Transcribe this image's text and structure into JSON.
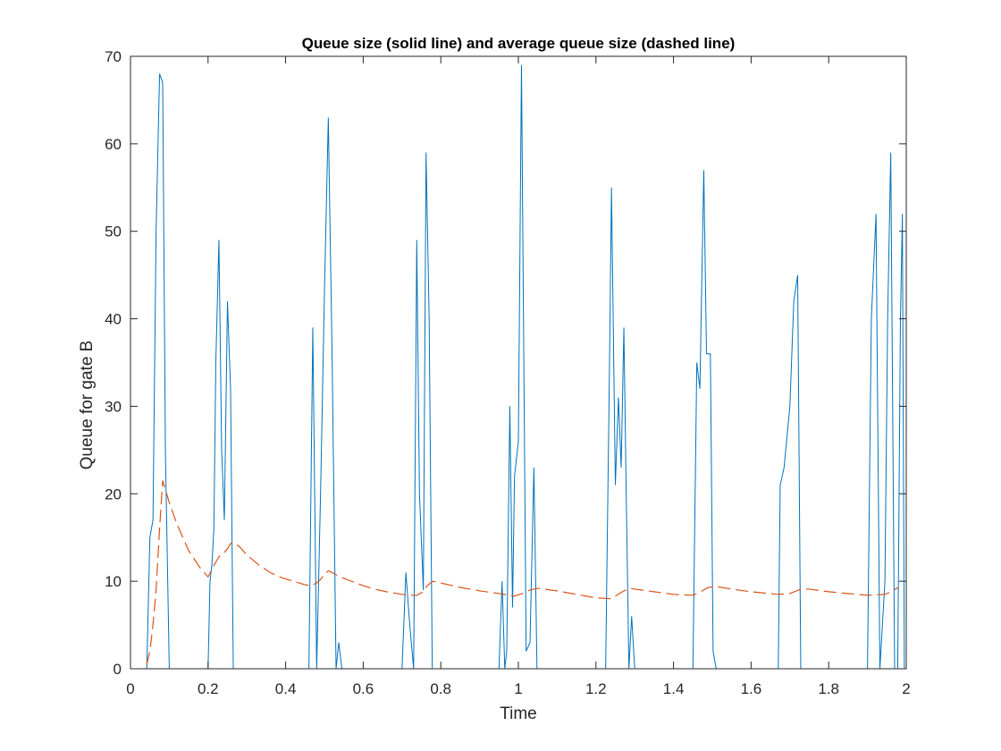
{
  "chart_data": {
    "type": "line",
    "title": "Queue size (solid line) and average queue size (dashed line)",
    "xlabel": "Time",
    "ylabel": "Queue for gate B",
    "xlim": [
      0,
      2
    ],
    "ylim": [
      0,
      70
    ],
    "xticks": [
      0,
      0.2,
      0.4,
      0.6,
      0.8,
      1,
      1.2,
      1.4,
      1.6,
      1.8,
      2
    ],
    "xtick_labels": [
      "0",
      "0.2",
      "0.4",
      "0.6",
      "0.8",
      "1",
      "1.2",
      "1.4",
      "1.6",
      "1.8",
      "2"
    ],
    "yticks": [
      0,
      10,
      20,
      30,
      40,
      50,
      60,
      70
    ],
    "ytick_labels": [
      "0",
      "10",
      "20",
      "30",
      "40",
      "50",
      "60",
      "70"
    ],
    "grid": false,
    "box": true,
    "series": [
      {
        "style": "solid",
        "color": "#0072BD",
        "x": [
          0,
          0.042,
          0.05,
          0.058,
          0.066,
          0.075,
          0.083,
          0.09,
          0.1,
          0.2,
          0.205,
          0.21,
          0.215,
          0.22,
          0.228,
          0.235,
          0.242,
          0.25,
          0.258,
          0.265,
          0.275,
          0.28,
          0.45,
          0.46,
          0.47,
          0.48,
          0.49,
          0.5,
          0.51,
          0.52,
          0.53,
          0.537,
          0.545,
          0.555,
          0.7,
          0.71,
          0.72,
          0.73,
          0.738,
          0.745,
          0.755,
          0.762,
          0.77,
          0.778,
          0.785,
          0.95,
          0.958,
          0.965,
          0.97,
          0.978,
          0.985,
          0.99,
          1.0,
          1.008,
          1.02,
          1.03,
          1.04,
          1.048,
          1.055,
          1.065,
          1.225,
          1.235,
          1.24,
          1.25,
          1.258,
          1.265,
          1.272,
          1.278,
          1.285,
          1.292,
          1.3,
          1.31,
          1.318,
          1.328,
          1.45,
          1.46,
          1.468,
          1.478,
          1.485,
          1.495,
          1.502,
          1.51,
          1.52,
          1.67,
          1.675,
          1.685,
          1.7,
          1.71,
          1.72,
          1.728,
          1.74,
          1.9,
          1.91,
          1.922,
          1.932,
          1.945,
          1.952,
          1.96,
          1.97,
          1.978,
          1.985,
          1.99,
          1.995
        ],
        "y": [
          0,
          0,
          15,
          17,
          50,
          68,
          67,
          25,
          0,
          0,
          10,
          12,
          16,
          35,
          49,
          25,
          17,
          42,
          32,
          0,
          0,
          0,
          0,
          0,
          39,
          0,
          20,
          43,
          63,
          35,
          0,
          3,
          0,
          0,
          0,
          11,
          5,
          0,
          49,
          20,
          9,
          59,
          40,
          0,
          0,
          0,
          10,
          0,
          2,
          30,
          7,
          22,
          26,
          69,
          2,
          3,
          23,
          0,
          0,
          0,
          0,
          35,
          55,
          21,
          31,
          23,
          39,
          20,
          0,
          6,
          0,
          0,
          0,
          0,
          0,
          35,
          32,
          57,
          36,
          36,
          2,
          0,
          0,
          0,
          21,
          23,
          30,
          42,
          45,
          0,
          0,
          0,
          40,
          52,
          0,
          10,
          40,
          59,
          0,
          0,
          40,
          52,
          0
        ]
      },
      {
        "style": "dashed",
        "color": "#D95319",
        "x": [
          0.042,
          0.05,
          0.058,
          0.066,
          0.075,
          0.083,
          0.09,
          0.1,
          0.12,
          0.15,
          0.18,
          0.2,
          0.215,
          0.228,
          0.24,
          0.25,
          0.258,
          0.265,
          0.28,
          0.3,
          0.33,
          0.36,
          0.39,
          0.42,
          0.45,
          0.465,
          0.48,
          0.49,
          0.5,
          0.51,
          0.52,
          0.54,
          0.57,
          0.6,
          0.63,
          0.66,
          0.7,
          0.72,
          0.738,
          0.755,
          0.765,
          0.78,
          0.8,
          0.85,
          0.9,
          0.95,
          0.99,
          1.01,
          1.03,
          1.05,
          1.1,
          1.15,
          1.2,
          1.24,
          1.26,
          1.285,
          1.3,
          1.35,
          1.4,
          1.45,
          1.47,
          1.49,
          1.51,
          1.55,
          1.6,
          1.67,
          1.7,
          1.728,
          1.75,
          1.8,
          1.85,
          1.9,
          1.945,
          1.96,
          1.98
        ],
        "y": [
          0.5,
          2,
          5,
          9,
          16,
          21.5,
          20.5,
          19,
          16.5,
          13.5,
          11.5,
          10.5,
          11.8,
          12.8,
          13.2,
          13.7,
          14.3,
          14.4,
          14,
          13,
          11.9,
          11,
          10.4,
          10,
          9.6,
          9.5,
          9.8,
          10.2,
          10.8,
          11.2,
          11,
          10.5,
          10,
          9.5,
          9.1,
          8.8,
          8.5,
          8.4,
          8.4,
          8.8,
          9.5,
          10,
          9.8,
          9.3,
          8.9,
          8.6,
          8.3,
          8.6,
          9,
          9.2,
          8.9,
          8.5,
          8.1,
          8,
          8.6,
          9.2,
          9.1,
          8.8,
          8.5,
          8.4,
          8.8,
          9.3,
          9.4,
          9.1,
          8.8,
          8.5,
          8.6,
          9.1,
          9.1,
          8.8,
          8.6,
          8.4,
          8.5,
          8.8,
          9.3
        ]
      }
    ]
  }
}
